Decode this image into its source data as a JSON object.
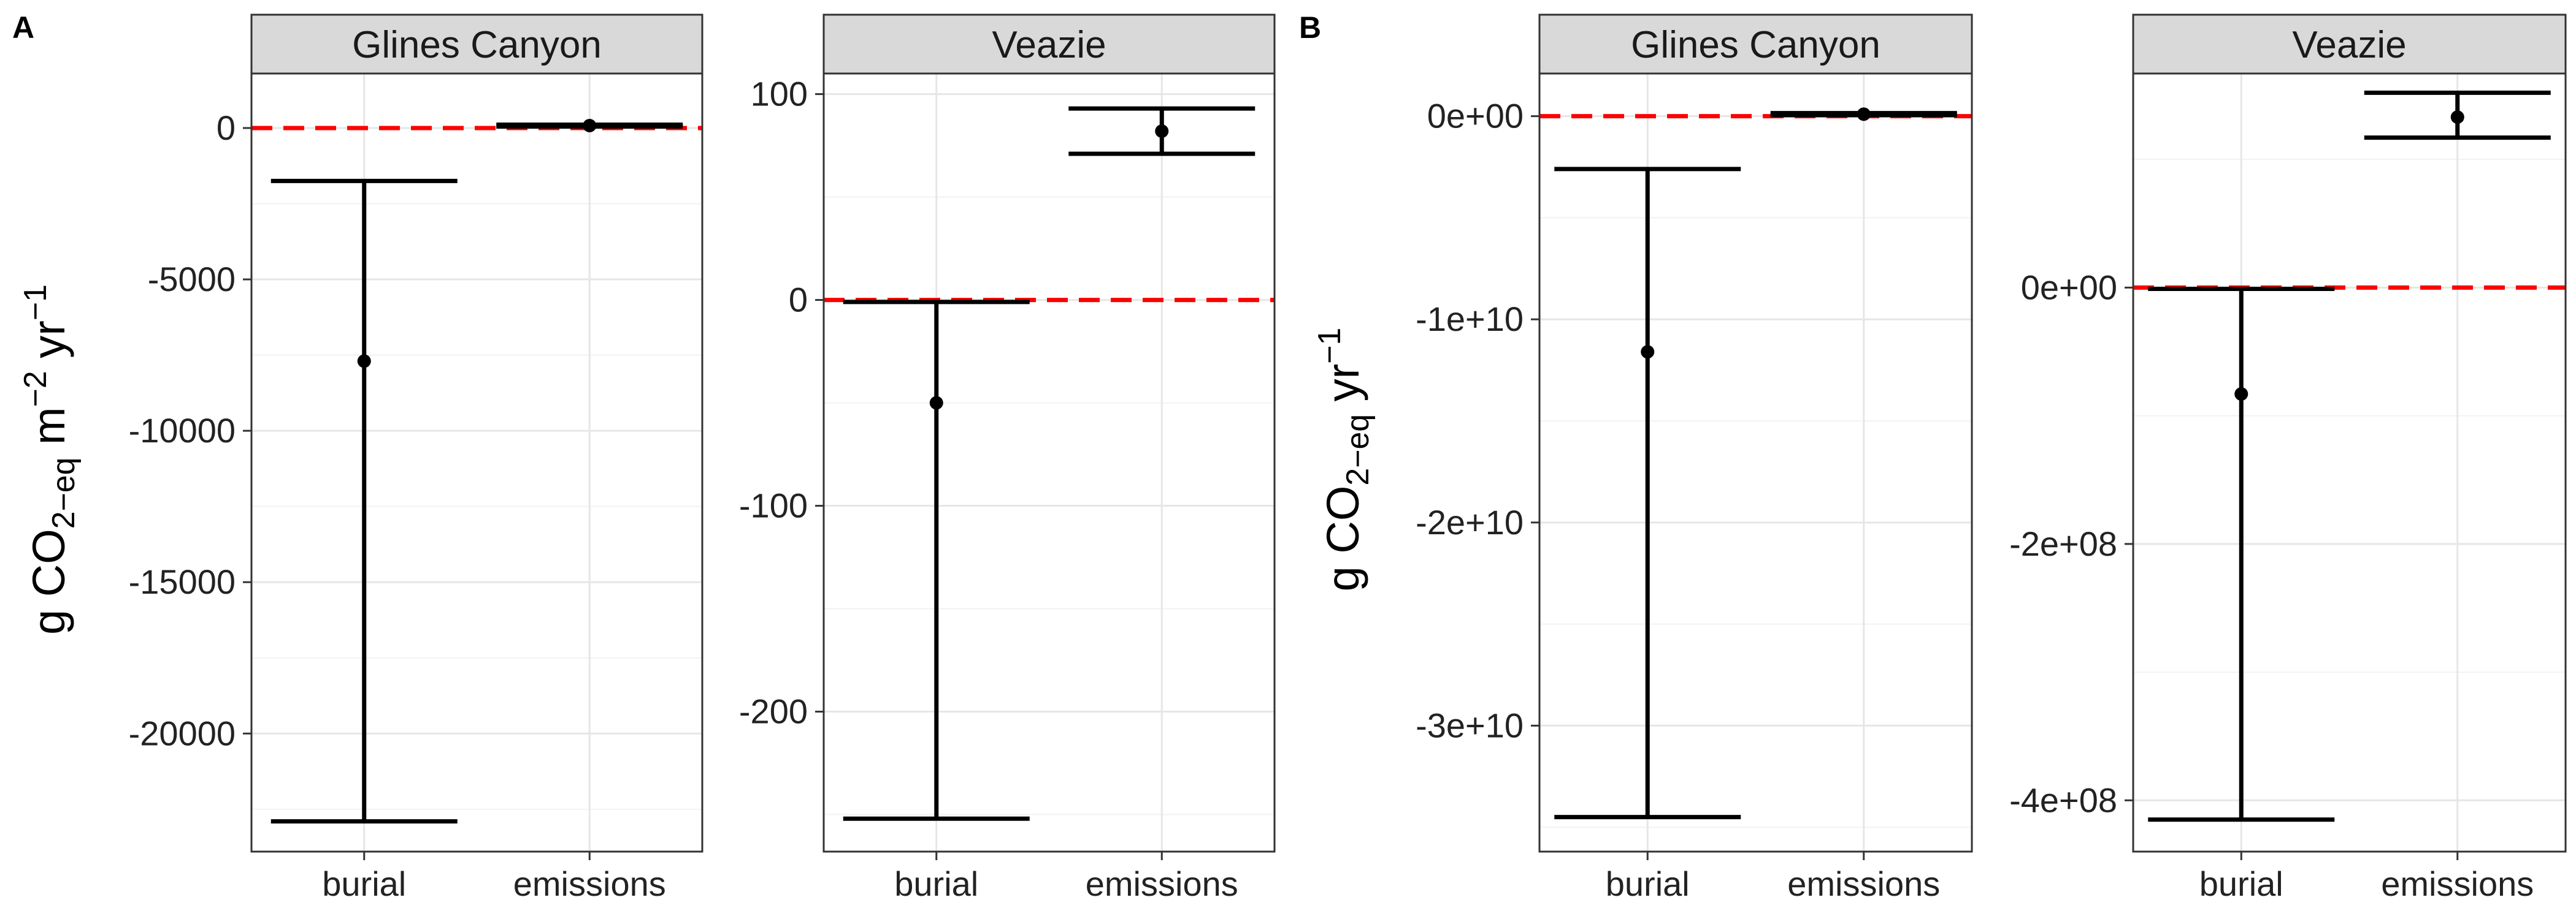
{
  "colors": {
    "reference_line": "#ff0000",
    "error_bar": "#000000",
    "point": "#000000",
    "strip_fill": "#d9d9d9",
    "panel_border": "#333333",
    "grid_major": "#e6e6e6",
    "grid_minor": "#f2f2f2"
  },
  "chart_data": [
    {
      "type": "scatter",
      "panel_letter": "A",
      "y_axis_label": {
        "prefix": "g CO",
        "sub1": "2−eq",
        "middle": " m",
        "sup1": "−2",
        "middle2": " yr",
        "sup2": "−1"
      },
      "facets": [
        {
          "strip": "Glines Canyon",
          "categories": [
            "burial",
            "emissions"
          ],
          "ylim": [
            -23900,
            1800
          ],
          "y_ticks": [
            0,
            -5000,
            -10000,
            -15000,
            -20000
          ],
          "y_tick_labels": [
            "0",
            "-5000",
            "-10000",
            "-15000",
            "-20000"
          ],
          "reference_line": 0,
          "points": [
            {
              "category": "burial",
              "y": -7700,
              "ymin": -22900,
              "ymax": -1750
            },
            {
              "category": "emissions",
              "y": 80,
              "ymin": 50,
              "ymax": 110
            }
          ]
        },
        {
          "strip": "Veazie",
          "categories": [
            "burial",
            "emissions"
          ],
          "ylim": [
            -268,
            110
          ],
          "y_ticks": [
            100,
            0,
            -100,
            -200
          ],
          "y_tick_labels": [
            "100",
            "0",
            "-100",
            "-200"
          ],
          "reference_line": 0,
          "points": [
            {
              "category": "burial",
              "y": -50,
              "ymin": -252,
              "ymax": -1
            },
            {
              "category": "emissions",
              "y": 82,
              "ymin": 71,
              "ymax": 93
            }
          ]
        }
      ]
    },
    {
      "type": "scatter",
      "panel_letter": "B",
      "y_axis_label": {
        "prefix": "g CO",
        "sub1": "2−eq",
        "middle": " yr",
        "sup1": "−1"
      },
      "facets": [
        {
          "strip": "Glines Canyon",
          "categories": [
            "burial",
            "emissions"
          ],
          "ylim": [
            -36200000000.0,
            2100000000.0
          ],
          "y_ticks": [
            0,
            -10000000000.0,
            -20000000000.0,
            -30000000000.0
          ],
          "y_tick_labels": [
            "0e+00",
            "-1e+10",
            "-2e+10",
            "-3e+10"
          ],
          "reference_line": 0,
          "points": [
            {
              "category": "burial",
              "y": -11600000000.0,
              "ymin": -34500000000.0,
              "ymax": -2600000000.0
            },
            {
              "category": "emissions",
              "y": 100000000.0,
              "ymin": 50000000.0,
              "ymax": 150000000.0
            }
          ]
        },
        {
          "strip": "Veazie",
          "categories": [
            "burial",
            "emissions"
          ],
          "ylim": [
            -440000000.0,
            167000000.0
          ],
          "y_ticks": [
            0,
            -200000000.0,
            -400000000.0
          ],
          "y_tick_labels": [
            "0e+00",
            "-2e+08",
            "-4e+08"
          ],
          "reference_line": 0,
          "points": [
            {
              "category": "burial",
              "y": -83000000.0,
              "ymin": -415000000.0,
              "ymax": -1000000.0
            },
            {
              "category": "emissions",
              "y": 133000000.0,
              "ymin": 117000000.0,
              "ymax": 152000000.0
            }
          ]
        }
      ]
    }
  ]
}
